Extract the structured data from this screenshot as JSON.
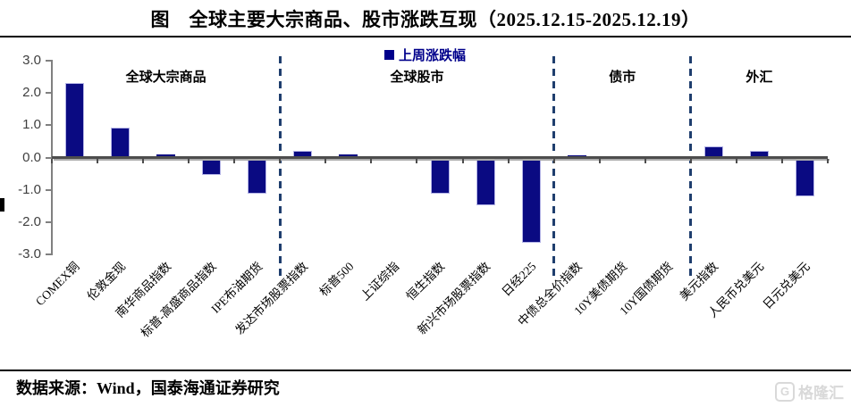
{
  "title": "图　全球主要大宗商品、股市涨跌互现（2025.12.15-2025.12.19）",
  "source": "数据来源：Wind，国泰海通证券研究",
  "watermark": "格隆汇",
  "watermark_icon": "G",
  "colors": {
    "bar": "#0A0A82",
    "bar_edge": "#b4b4e6",
    "legend": "#00008B",
    "separator": "#1F3E6E",
    "axis": "#808080",
    "zero_line": "#4d4d4d"
  },
  "chart_data": {
    "type": "bar",
    "title": "",
    "legend_label": "上周涨跌幅",
    "legend_position": "top-center",
    "grid": false,
    "ylim": [
      -3.0,
      3.0
    ],
    "ytick_labels": [
      "3.0",
      "2.0",
      "1.0",
      "0.0",
      "-1.0",
      "-2.0",
      "-3.0"
    ],
    "categories": [
      "COMEX铜",
      "伦敦金现",
      "南华商品指数",
      "标普-高盛商品指数",
      "IPE布油期货",
      "发达市场股票指数",
      "标普500",
      "上证综指",
      "恒生指数",
      "新兴市场股票指数",
      "日经225",
      "中债总全价指数",
      "10Y美债期货",
      "10Y国债期货",
      "美元指数",
      "人民币兑美元",
      "日元兑美元"
    ],
    "values": [
      2.33,
      0.95,
      0.1,
      -0.52,
      -1.1,
      0.21,
      0.12,
      0.05,
      -1.1,
      -1.47,
      -2.63,
      0.07,
      0.0,
      -0.09,
      0.37,
      0.22,
      -1.2
    ],
    "sections": [
      {
        "label": "全球大宗商品",
        "from": 0,
        "to": 4
      },
      {
        "label": "全球股市",
        "from": 5,
        "to": 10
      },
      {
        "label": "债市",
        "from": 11,
        "to": 13
      },
      {
        "label": "外汇",
        "from": 14,
        "to": 16
      }
    ],
    "separators_after_index": [
      4,
      10,
      13
    ]
  }
}
